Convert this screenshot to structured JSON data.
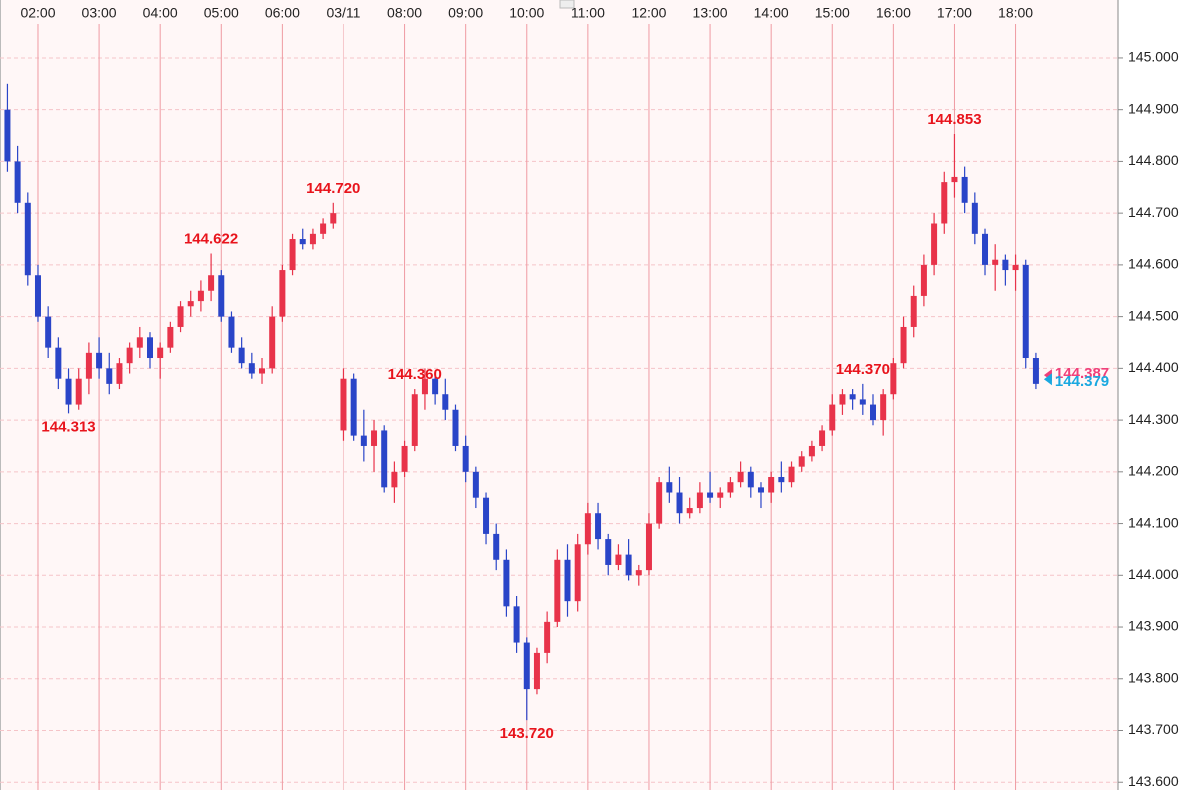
{
  "chart_data": {
    "type": "candlestick",
    "xlim": [
      82.7,
      1180.6
    ],
    "ylim": [
      143.585,
      145.112
    ],
    "xticks": [
      {
        "value": 120,
        "label": "02:00"
      },
      {
        "value": 180,
        "label": "03:00"
      },
      {
        "value": 240,
        "label": "04:00"
      },
      {
        "value": 300,
        "label": "05:00"
      },
      {
        "value": 360,
        "label": "06:00"
      },
      {
        "value": 420,
        "label": "03/11"
      },
      {
        "value": 480,
        "label": "08:00"
      },
      {
        "value": 540,
        "label": "09:00"
      },
      {
        "value": 600,
        "label": "10:00"
      },
      {
        "value": 660,
        "label": "11:00"
      },
      {
        "value": 720,
        "label": "12:00"
      },
      {
        "value": 780,
        "label": "13:00"
      },
      {
        "value": 840,
        "label": "14:00"
      },
      {
        "value": 900,
        "label": "15:00"
      },
      {
        "value": 960,
        "label": "16:00"
      },
      {
        "value": 1020,
        "label": "17:00"
      },
      {
        "value": 1080,
        "label": "18:00"
      }
    ],
    "yticks": [
      {
        "value": 143.6,
        "label": "143.600"
      },
      {
        "value": 143.7,
        "label": "143.700"
      },
      {
        "value": 143.8,
        "label": "143.800"
      },
      {
        "value": 143.9,
        "label": "143.900"
      },
      {
        "value": 144.0,
        "label": "144.000"
      },
      {
        "value": 144.1,
        "label": "144.100"
      },
      {
        "value": 144.2,
        "label": "144.200"
      },
      {
        "value": 144.3,
        "label": "144.300"
      },
      {
        "value": 144.4,
        "label": "144.400"
      },
      {
        "value": 144.5,
        "label": "144.500"
      },
      {
        "value": 144.6,
        "label": "144.600"
      },
      {
        "value": 144.7,
        "label": "144.700"
      },
      {
        "value": 144.8,
        "label": "144.800"
      },
      {
        "value": 144.9,
        "label": "144.900"
      },
      {
        "value": 145.0,
        "label": "145.000"
      }
    ],
    "grid": true,
    "up_color": "#e8334a",
    "down_color": "#2a45c8",
    "x": [
      90,
      100,
      110,
      120,
      130,
      140,
      150,
      160,
      170,
      180,
      190,
      200,
      210,
      220,
      230,
      240,
      250,
      260,
      270,
      280,
      290,
      300,
      310,
      320,
      330,
      340,
      350,
      360,
      370,
      380,
      390,
      400,
      410,
      420,
      430,
      440,
      450,
      460,
      470,
      480,
      490,
      500,
      510,
      520,
      530,
      540,
      550,
      560,
      570,
      580,
      590,
      600,
      610,
      620,
      630,
      640,
      650,
      660,
      670,
      680,
      690,
      700,
      710,
      720,
      730,
      740,
      750,
      760,
      770,
      780,
      790,
      800,
      810,
      820,
      830,
      840,
      850,
      860,
      870,
      880,
      890,
      900,
      910,
      920,
      930,
      940,
      950,
      960,
      970,
      980,
      990,
      1000,
      1010,
      1020,
      1030,
      1040,
      1050,
      1060,
      1070,
      1080,
      1090,
      1100
    ],
    "open": [
      144.9,
      144.8,
      144.72,
      144.58,
      144.5,
      144.44,
      144.38,
      144.33,
      144.38,
      144.43,
      144.4,
      144.37,
      144.41,
      144.44,
      144.46,
      144.42,
      144.44,
      144.48,
      144.52,
      144.53,
      144.55,
      144.58,
      144.5,
      144.44,
      144.41,
      144.39,
      144.4,
      144.5,
      144.59,
      144.65,
      144.64,
      144.66,
      144.68,
      144.28,
      144.38,
      144.27,
      144.25,
      144.28,
      144.17,
      144.2,
      144.25,
      144.35,
      144.38,
      144.35,
      144.32,
      144.25,
      144.2,
      144.15,
      144.08,
      144.03,
      143.94,
      143.87,
      143.78,
      143.85,
      143.91,
      144.03,
      143.95,
      144.06,
      144.12,
      144.07,
      144.02,
      144.04,
      144.0,
      144.01,
      144.1,
      144.18,
      144.16,
      144.12,
      144.13,
      144.16,
      144.15,
      144.16,
      144.18,
      144.2,
      144.17,
      144.16,
      144.19,
      144.18,
      144.21,
      144.23,
      144.25,
      144.28,
      144.33,
      144.35,
      144.34,
      144.33,
      144.3,
      144.35,
      144.41,
      144.48,
      144.54,
      144.6,
      144.68,
      144.76,
      144.77,
      144.72,
      144.66,
      144.6,
      144.61,
      144.59,
      144.6,
      144.42
    ],
    "high": [
      144.95,
      144.83,
      144.74,
      144.6,
      144.52,
      144.46,
      144.4,
      144.4,
      144.45,
      144.46,
      144.43,
      144.42,
      144.45,
      144.48,
      144.47,
      144.45,
      144.49,
      144.53,
      144.55,
      144.57,
      144.622,
      144.59,
      144.51,
      144.46,
      144.43,
      144.42,
      144.52,
      144.6,
      144.66,
      144.67,
      144.67,
      144.69,
      144.72,
      144.4,
      144.39,
      144.32,
      144.3,
      144.29,
      144.22,
      144.26,
      144.36,
      144.4,
      144.39,
      144.38,
      144.33,
      144.27,
      144.21,
      144.16,
      144.1,
      144.05,
      143.96,
      143.88,
      143.86,
      143.93,
      144.05,
      144.06,
      144.08,
      144.14,
      144.14,
      144.08,
      144.06,
      144.07,
      144.02,
      144.12,
      144.19,
      144.21,
      144.19,
      144.15,
      144.18,
      144.2,
      144.17,
      144.19,
      144.22,
      144.21,
      144.18,
      144.2,
      144.22,
      144.22,
      144.24,
      144.26,
      144.29,
      144.35,
      144.36,
      144.36,
      144.37,
      144.35,
      144.36,
      144.42,
      144.5,
      144.56,
      144.62,
      144.7,
      144.78,
      144.853,
      144.79,
      144.74,
      144.67,
      144.64,
      144.62,
      144.62,
      144.61,
      144.43
    ],
    "low": [
      144.78,
      144.7,
      144.56,
      144.49,
      144.42,
      144.36,
      144.313,
      144.32,
      144.35,
      144.38,
      144.35,
      144.36,
      144.39,
      144.42,
      144.4,
      144.38,
      144.43,
      144.47,
      144.5,
      144.51,
      144.53,
      144.49,
      144.43,
      144.4,
      144.38,
      144.37,
      144.39,
      144.49,
      144.58,
      144.63,
      144.63,
      144.65,
      144.67,
      144.26,
      144.26,
      144.22,
      144.2,
      144.16,
      144.14,
      144.19,
      144.24,
      144.32,
      144.33,
      144.3,
      144.24,
      144.18,
      144.13,
      144.06,
      144.01,
      143.92,
      143.85,
      143.72,
      143.77,
      143.83,
      143.9,
      143.92,
      143.93,
      144.04,
      144.05,
      144.0,
      144.01,
      143.99,
      143.98,
      144.0,
      144.09,
      144.14,
      144.1,
      144.11,
      144.12,
      144.14,
      144.13,
      144.15,
      144.17,
      144.15,
      144.13,
      144.14,
      144.16,
      144.17,
      144.2,
      144.22,
      144.24,
      144.27,
      144.31,
      144.32,
      144.31,
      144.29,
      144.27,
      144.34,
      144.4,
      144.46,
      144.52,
      144.58,
      144.66,
      144.73,
      144.7,
      144.64,
      144.58,
      144.55,
      144.56,
      144.55,
      144.4,
      144.36
    ],
    "close": [
      144.8,
      144.72,
      144.58,
      144.5,
      144.44,
      144.38,
      144.33,
      144.38,
      144.43,
      144.4,
      144.37,
      144.41,
      144.44,
      144.46,
      144.42,
      144.44,
      144.48,
      144.52,
      144.53,
      144.55,
      144.58,
      144.5,
      144.44,
      144.41,
      144.39,
      144.4,
      144.5,
      144.59,
      144.65,
      144.64,
      144.66,
      144.68,
      144.7,
      144.38,
      144.27,
      144.25,
      144.28,
      144.17,
      144.2,
      144.25,
      144.35,
      144.38,
      144.35,
      144.32,
      144.25,
      144.2,
      144.15,
      144.08,
      144.03,
      143.94,
      143.87,
      143.78,
      143.85,
      143.91,
      144.03,
      143.95,
      144.06,
      144.12,
      144.07,
      144.02,
      144.04,
      144.0,
      144.01,
      144.1,
      144.18,
      144.16,
      144.12,
      144.13,
      144.16,
      144.15,
      144.16,
      144.18,
      144.2,
      144.17,
      144.16,
      144.19,
      144.18,
      144.21,
      144.23,
      144.25,
      144.28,
      144.33,
      144.35,
      144.34,
      144.33,
      144.3,
      144.35,
      144.41,
      144.48,
      144.54,
      144.6,
      144.68,
      144.76,
      144.77,
      144.72,
      144.66,
      144.6,
      144.61,
      144.59,
      144.6,
      144.42,
      144.37
    ],
    "annotation_color": "#e8141c",
    "annotations": [
      {
        "label": "144.313",
        "value": 144.313
      },
      {
        "label": "144.622",
        "value": 144.622
      },
      {
        "label": "144.370",
        "value": 144.37
      },
      {
        "label": "144.720",
        "value": 144.72
      },
      {
        "label": "143.720",
        "value": 143.72
      },
      {
        "label": "144.853",
        "value": 144.853
      },
      {
        "label": "144.360",
        "value": 144.36
      }
    ],
    "price_markers": [
      {
        "label": "144.387",
        "value": 144.387,
        "color": "#f0407a"
      },
      {
        "label": "144.379",
        "value": 144.379,
        "color": "#1aa8e0"
      }
    ]
  }
}
